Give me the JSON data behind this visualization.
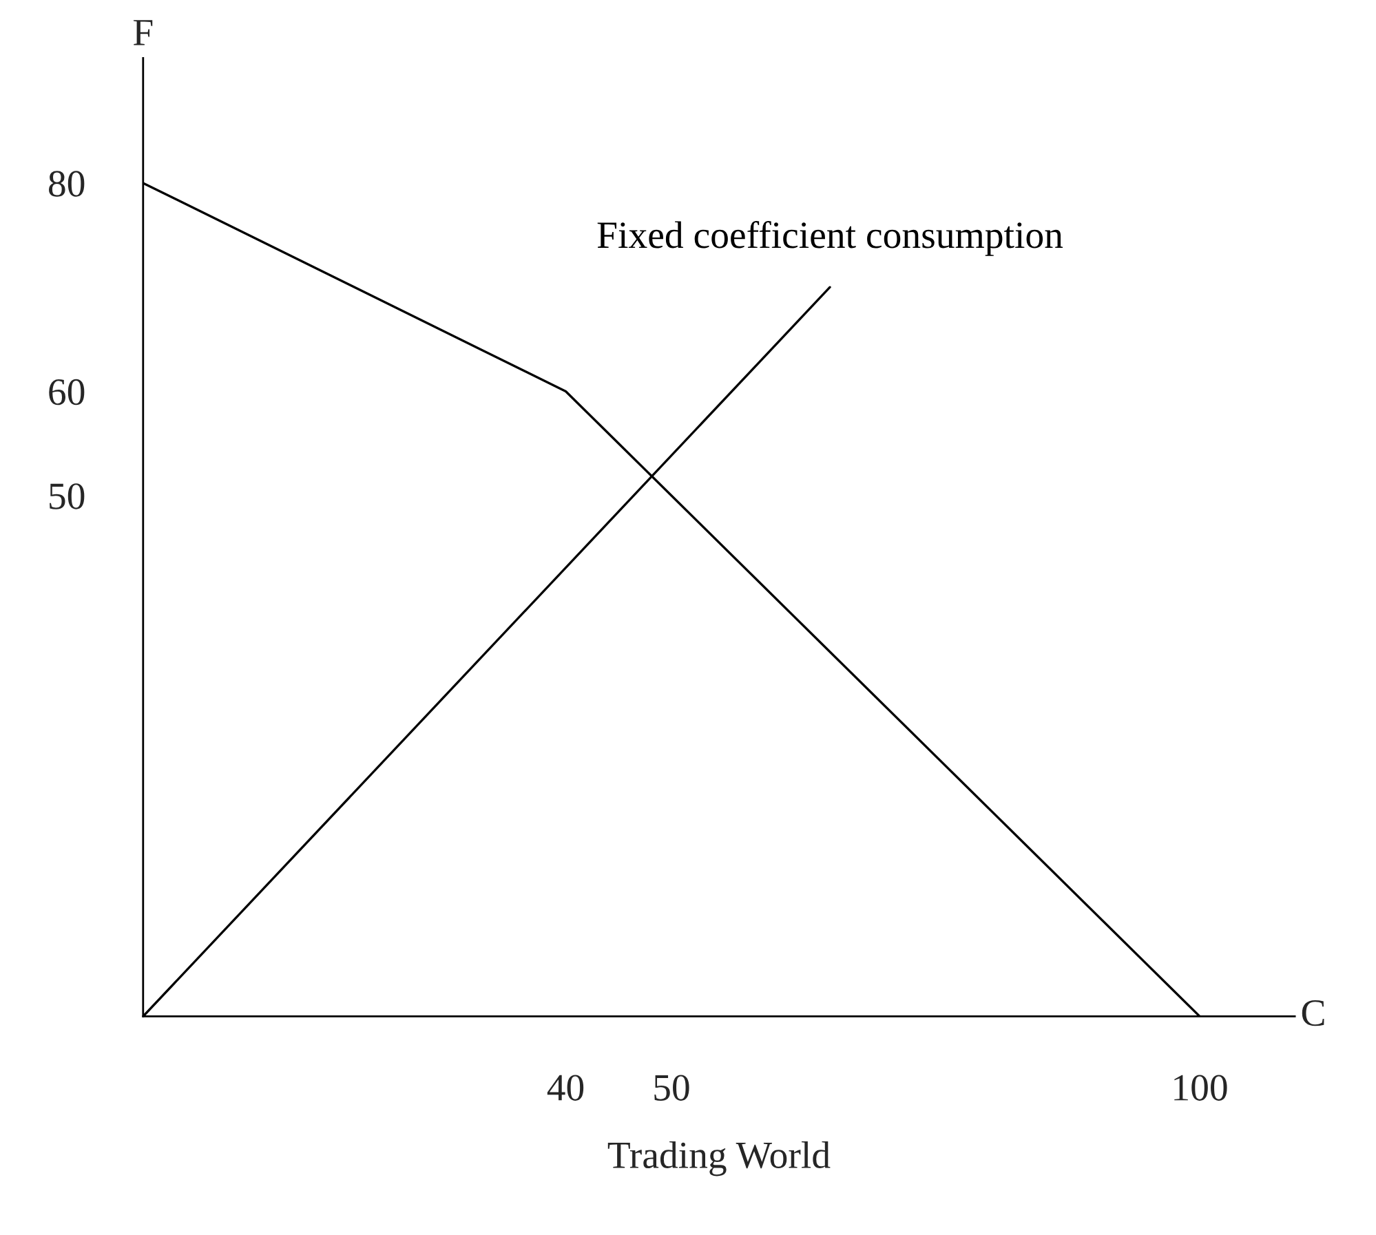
{
  "chart_data": {
    "type": "line",
    "title": "Trading World",
    "xlabel": "C",
    "ylabel": "F",
    "series": [
      {
        "name": null,
        "color": "#000000",
        "x": [
          0,
          40,
          100
        ],
        "values": [
          80,
          60,
          0
        ]
      },
      {
        "name": "Fixed coefficient consumption",
        "color": "#000000",
        "x": [
          0,
          65
        ],
        "values": [
          0,
          70
        ]
      }
    ],
    "xlim": [
      0,
      109
    ],
    "ylim": [
      0,
      92
    ],
    "xticks": [
      40,
      50,
      100
    ],
    "yticks": [
      50,
      60,
      80
    ],
    "grid": false,
    "legend": false,
    "marker": "none",
    "line_style": "solid"
  }
}
